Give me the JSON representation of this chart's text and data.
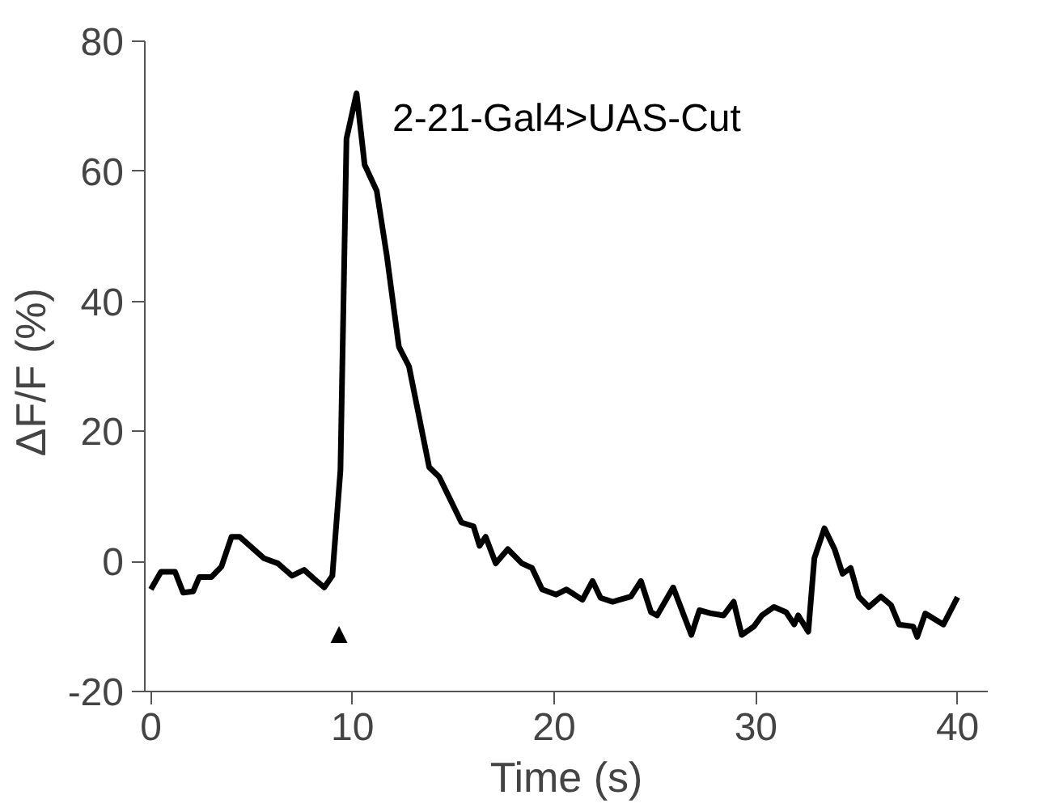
{
  "chart_data": {
    "type": "line",
    "xlabel": "Time (s)",
    "ylabel": "ΔF/F  (%)",
    "x": [
      0,
      0.5,
      1.2,
      1.6,
      2.1,
      2.4,
      3.0,
      3.5,
      4.0,
      4.4,
      5.6,
      6.3,
      7.0,
      7.6,
      8.1,
      8.6,
      9.0,
      9.4,
      9.7,
      10.2,
      10.6,
      11.2,
      11.7,
      12.3,
      12.8,
      13.8,
      14.3,
      15.4,
      16.0,
      16.3,
      16.6,
      17.1,
      17.7,
      18.4,
      18.9,
      19.4,
      20.1,
      20.6,
      21.4,
      21.9,
      22.3,
      22.9,
      23.8,
      24.3,
      24.8,
      25.1,
      25.9,
      26.8,
      27.2,
      27.8,
      28.4,
      28.9,
      29.3,
      29.9,
      30.3,
      30.9,
      31.5,
      31.9,
      32.1,
      32.6,
      32.9,
      33.4,
      33.9,
      34.3,
      34.7,
      35.1,
      35.6,
      36.2,
      36.7,
      37.1,
      37.8,
      38.0,
      38.4,
      39.3,
      40.0
    ],
    "series": [
      {
        "color": "#000000",
        "values": [
          -4.3,
          -1.6,
          -1.6,
          -4.8,
          -4.6,
          -2.4,
          -2.4,
          -0.8,
          3.8,
          3.8,
          0.5,
          -0.3,
          -2.2,
          -1.3,
          -2.7,
          -4.0,
          -2.2,
          14,
          65,
          72,
          61,
          57,
          47,
          33,
          30,
          14.5,
          13,
          6,
          5.4,
          2.4,
          3.8,
          -0.3,
          1.9,
          -0.3,
          -1,
          -4.3,
          -5.1,
          -4.3,
          -5.9,
          -3,
          -5.6,
          -6.2,
          -5.4,
          -3,
          -7.8,
          -8.3,
          -4,
          -11.3,
          -7.5,
          -8,
          -8.3,
          -6.2,
          -11.3,
          -10,
          -8.3,
          -7,
          -7.8,
          -9.7,
          -8.3,
          -10.8,
          0.5,
          5.1,
          1.9,
          -1.9,
          -1,
          -5.4,
          -7,
          -5.4,
          -6.7,
          -9.7,
          -10,
          -11.6,
          -8,
          -9.7,
          -5.5
        ]
      }
    ],
    "xlim": [
      -0.3,
      41.5
    ],
    "xticks": [
      0,
      10,
      20,
      30,
      40
    ],
    "ylim": [
      -20,
      80
    ],
    "yticks": [
      -20,
      0,
      20,
      40,
      60,
      80
    ],
    "grid": false,
    "marker": "none",
    "line_style": "solid",
    "annotations": [
      "2-21-Gal4>UAS-Cut",
      "▲"
    ]
  }
}
